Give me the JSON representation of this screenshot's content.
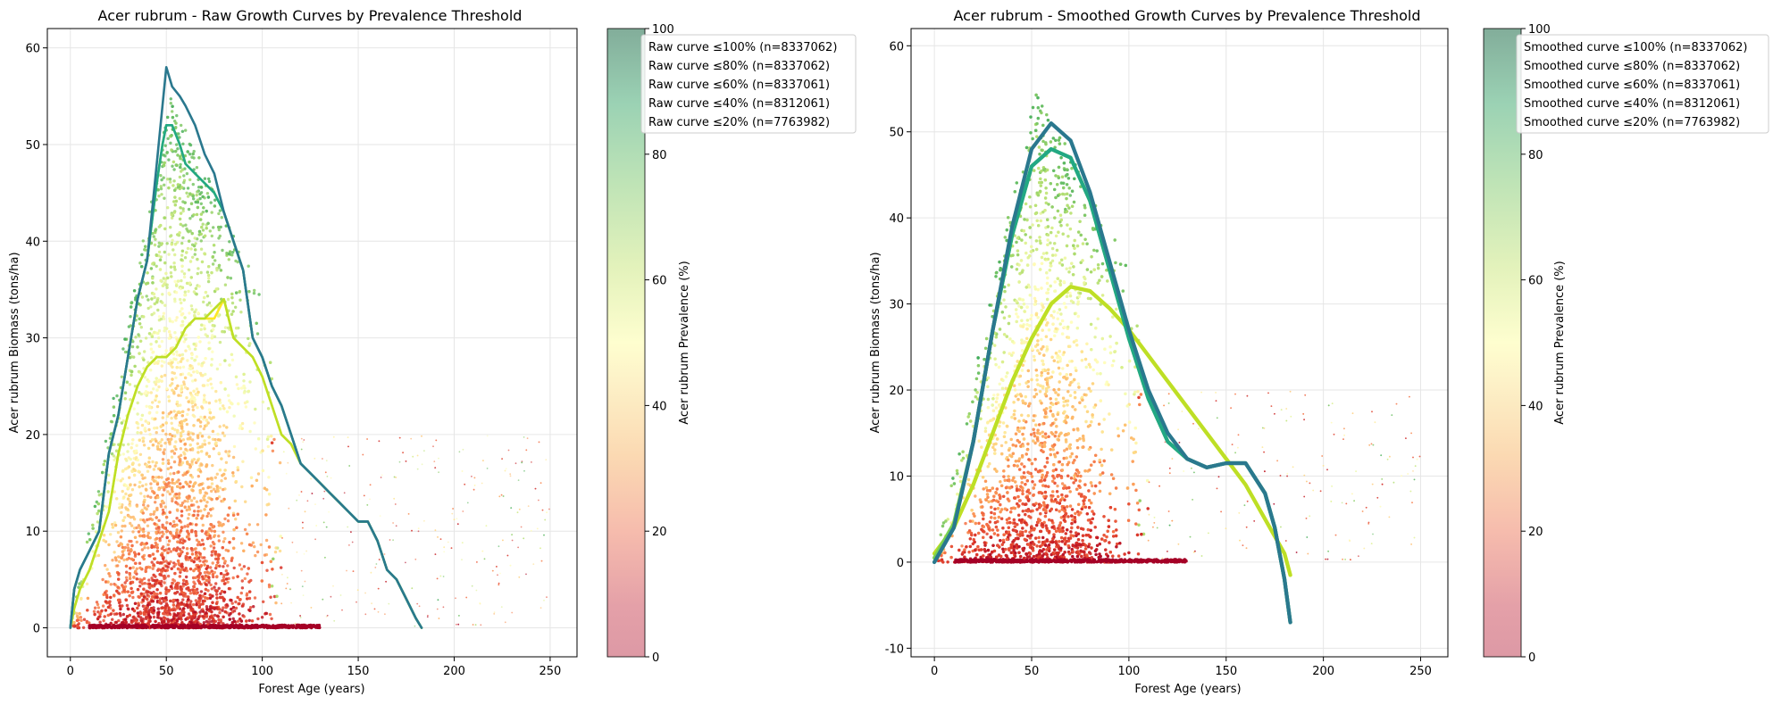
{
  "chart_data": [
    {
      "type": "scatter",
      "title": "Acer rubrum - Raw Growth Curves by Prevalence Threshold",
      "xlabel": "Forest Age (years)",
      "ylabel": "Acer rubrum Biomass (tons/ha)",
      "xlim": [
        -12,
        264
      ],
      "ylim": [
        -3,
        62
      ],
      "xticks": [
        0,
        50,
        100,
        150,
        200,
        250
      ],
      "yticks": [
        0,
        10,
        20,
        30,
        40,
        50,
        60
      ],
      "grid": true,
      "legend_position": "upper right, outside the colorbar",
      "colorbar": {
        "label": "Acer rubrum Prevalence (%)",
        "ticks": [
          0,
          20,
          40,
          60,
          80,
          100
        ],
        "range": [
          0,
          100
        ]
      },
      "scatter_description": "dense point cloud of plot biomass vs age colored by prevalence (red low, yellow mid, green high)",
      "series": [
        {
          "name": "Raw curve ≤100% (n=8337062)",
          "color": "#2a788e",
          "x": [
            0,
            2,
            5,
            10,
            15,
            20,
            25,
            30,
            35,
            40,
            45,
            48,
            50,
            53,
            57,
            60,
            65,
            70,
            75,
            80,
            85,
            90,
            95,
            100,
            105,
            110,
            115,
            120,
            125,
            130,
            135,
            140,
            145,
            150,
            155,
            160,
            165,
            170,
            175,
            180,
            183
          ],
          "y": [
            0,
            4,
            6,
            8,
            10,
            18,
            22,
            28,
            34,
            38,
            48,
            54,
            58,
            56,
            55,
            54,
            52,
            49,
            47,
            43,
            40,
            37,
            30,
            28,
            25,
            23,
            20,
            17,
            16,
            15,
            14,
            13,
            12,
            11,
            11,
            9,
            6,
            5,
            3,
            1,
            0
          ]
        },
        {
          "name": "Raw curve ≤80% (n=8337062)",
          "color": "#22a884",
          "x": [
            0,
            2,
            5,
            10,
            15,
            20,
            25,
            30,
            35,
            40,
            45,
            48,
            50,
            53,
            57,
            60,
            65,
            70,
            75,
            80,
            85,
            90,
            95,
            100,
            105,
            110,
            115,
            120,
            125,
            130,
            135,
            140,
            145,
            150,
            155,
            160,
            165,
            170,
            175,
            180,
            183
          ],
          "y": [
            0,
            4,
            6,
            8,
            10,
            18,
            22,
            28,
            34,
            38,
            46,
            50,
            52,
            52,
            50,
            48,
            47,
            46,
            45,
            43,
            40,
            37,
            30,
            28,
            25,
            23,
            20,
            17,
            16,
            15,
            14,
            13,
            12,
            11,
            11,
            9,
            6,
            5,
            3,
            1,
            0
          ]
        },
        {
          "name": "Raw curve ≤60% (n=8337061)",
          "color": "#7ad151",
          "x": [
            0,
            2,
            5,
            10,
            15,
            20,
            25,
            30,
            35,
            40,
            45,
            48,
            50,
            53,
            57,
            60,
            65,
            70,
            75,
            80,
            85,
            90,
            95,
            100,
            105,
            110,
            115,
            120,
            125,
            130,
            135,
            140,
            145,
            150,
            155,
            160,
            165,
            170,
            175,
            180,
            183
          ],
          "y": [
            0,
            4,
            6,
            8,
            10,
            18,
            22,
            28,
            34,
            38,
            46,
            50,
            52,
            52,
            50,
            48,
            47,
            46,
            45,
            43,
            40,
            37,
            30,
            28,
            25,
            23,
            20,
            17,
            16,
            15,
            14,
            13,
            12,
            11,
            11,
            9,
            6,
            5,
            3,
            1,
            0
          ]
        },
        {
          "name": "Raw curve ≤40% (n=8312061)",
          "color": "#bddf26",
          "x": [
            0,
            2,
            5,
            10,
            15,
            20,
            25,
            30,
            35,
            40,
            45,
            50,
            55,
            60,
            65,
            70,
            75,
            80,
            85,
            90,
            95,
            100,
            105,
            110,
            115,
            120,
            125,
            130,
            135,
            140,
            145,
            150,
            155,
            160,
            165,
            170,
            175,
            180,
            183
          ],
          "y": [
            0,
            2,
            4,
            6,
            9,
            12,
            18,
            22,
            25,
            27,
            28,
            28,
            29,
            31,
            32,
            32,
            33,
            34,
            30,
            29,
            28,
            26,
            23,
            20,
            19,
            17,
            16,
            15,
            14,
            13,
            12,
            11,
            11,
            9,
            6,
            5,
            3,
            1,
            0
          ]
        },
        {
          "name": "Raw curve ≤20% (n=7763982)",
          "color": "#fde725",
          "x": [
            0,
            2,
            5,
            10,
            15,
            20,
            25,
            30,
            35,
            40,
            45,
            50,
            55,
            60,
            65,
            70,
            75,
            80,
            85,
            90,
            95,
            100,
            105,
            110,
            115,
            120,
            125,
            130,
            135,
            140,
            145,
            150,
            155,
            160,
            165,
            170,
            175,
            180,
            183
          ],
          "y": [
            0,
            2,
            4,
            6,
            9,
            12,
            18,
            22,
            25,
            27,
            28,
            28,
            29,
            31,
            32,
            32,
            32,
            34,
            30,
            29,
            28,
            26,
            23,
            20,
            19,
            17,
            16,
            15,
            14,
            13,
            12,
            11,
            11,
            9,
            6,
            5,
            3,
            1,
            0
          ]
        }
      ]
    },
    {
      "type": "scatter",
      "title": "Acer rubrum - Smoothed Growth Curves by Prevalence Threshold",
      "xlabel": "Forest Age (years)",
      "ylabel": "Acer rubrum Biomass (tons/ha)",
      "xlim": [
        -12,
        264
      ],
      "ylim": [
        -11,
        62
      ],
      "xticks": [
        0,
        50,
        100,
        150,
        200,
        250
      ],
      "yticks": [
        -10,
        0,
        10,
        20,
        30,
        40,
        50,
        60
      ],
      "grid": true,
      "legend_position": "upper right, outside the colorbar",
      "colorbar": {
        "label": "Acer rubrum Prevalence (%)",
        "ticks": [
          0,
          20,
          40,
          60,
          80,
          100
        ],
        "range": [
          0,
          100
        ]
      },
      "series": [
        {
          "name": "Smoothed curve ≤100% (n=8337062)",
          "color": "#2a788e",
          "x": [
            0,
            10,
            20,
            30,
            40,
            50,
            60,
            70,
            80,
            90,
            100,
            110,
            120,
            130,
            140,
            150,
            160,
            170,
            175,
            180,
            183
          ],
          "y": [
            0,
            4,
            14,
            27,
            39,
            48,
            51,
            49,
            43,
            35,
            27,
            20,
            15,
            12,
            11,
            11.5,
            11.5,
            8,
            4,
            -2,
            -7
          ]
        },
        {
          "name": "Smoothed curve ≤80% (n=8337062)",
          "color": "#22a884",
          "x": [
            0,
            10,
            20,
            30,
            40,
            50,
            60,
            70,
            80,
            90,
            100,
            110,
            120,
            130,
            140,
            150,
            160,
            170,
            175,
            180,
            183
          ],
          "y": [
            0,
            4,
            14,
            27,
            38,
            46,
            48,
            47,
            42,
            34,
            26,
            19,
            14,
            12,
            11,
            11.5,
            11.5,
            8,
            4,
            -2,
            -7
          ]
        },
        {
          "name": "Smoothed curve ≤60% (n=8337061)",
          "color": "#7ad151",
          "x": [
            0,
            10,
            20,
            30,
            40,
            50,
            60,
            70,
            80,
            90,
            100,
            110,
            120,
            130,
            140,
            150,
            160,
            170,
            175,
            180,
            183
          ],
          "y": [
            0.5,
            4.5,
            14,
            27,
            38,
            46,
            48,
            47,
            42,
            34,
            26,
            19,
            14,
            12,
            11,
            11.5,
            11.5,
            8,
            4,
            -2,
            -7
          ]
        },
        {
          "name": "Smoothed curve ≤40% (n=8312061)",
          "color": "#bddf26",
          "x": [
            0,
            10,
            20,
            30,
            40,
            50,
            60,
            70,
            80,
            90,
            100,
            110,
            120,
            130,
            140,
            150,
            160,
            170,
            180,
            183
          ],
          "y": [
            1,
            4,
            9,
            15,
            21,
            26,
            30,
            32,
            31.5,
            29.5,
            27,
            24,
            21,
            18,
            15,
            12,
            9,
            5,
            1,
            -1.5
          ]
        },
        {
          "name": "Smoothed curve ≤20% (n=7763982)",
          "color": "#fde725",
          "x": [
            0,
            10,
            20,
            30,
            40,
            50,
            60,
            70,
            80,
            90,
            100,
            110,
            120,
            130,
            140,
            150,
            160,
            170,
            180,
            183
          ],
          "y": [
            1,
            4,
            9,
            15,
            21,
            26,
            30,
            32,
            31.5,
            29.5,
            27,
            24,
            21,
            18,
            15,
            12,
            9,
            5,
            1,
            -1.5
          ]
        }
      ]
    }
  ]
}
